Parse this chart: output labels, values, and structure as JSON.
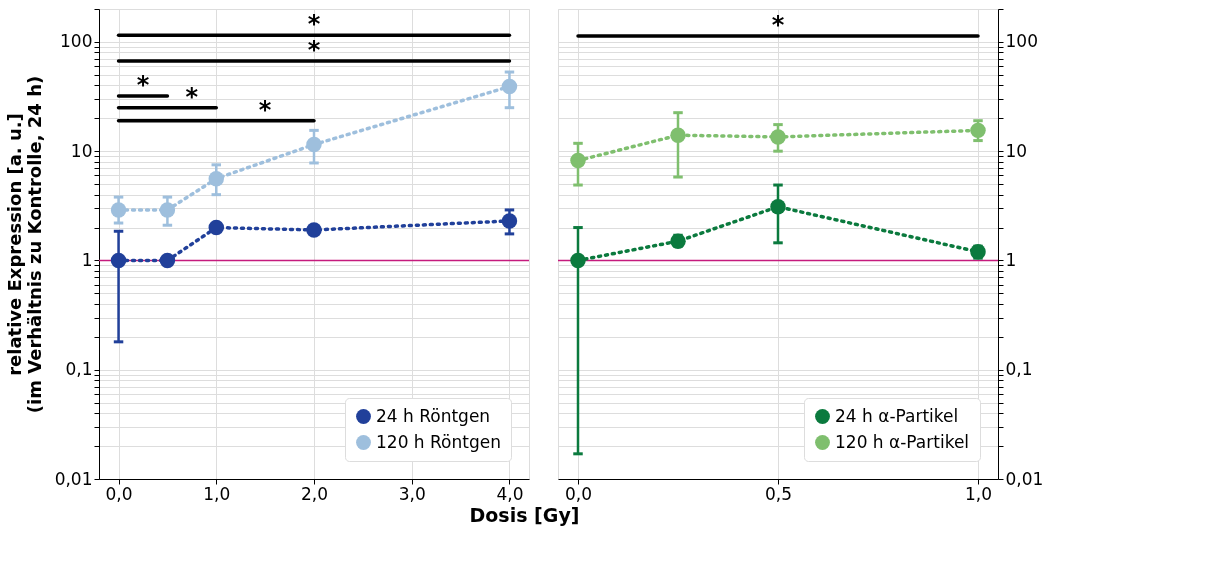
{
  "chart_data": [
    {
      "type": "line",
      "xlabel": "Dosis [Gy]",
      "ylabel": "relative Expression [a. u.]\n(im Verhältnis zu Kontrolle, 24 h)",
      "log": "y",
      "grid": true,
      "legend": "bottom right",
      "marker": "circle",
      "line_style": "dotted",
      "xlim": [
        -0.2,
        4.2
      ],
      "xticks": [
        {
          "value": 0,
          "label": "0,0"
        },
        {
          "value": 1,
          "label": "1,0"
        },
        {
          "value": 2,
          "label": "2,0"
        },
        {
          "value": 3,
          "label": "3,0"
        },
        {
          "value": 4,
          "label": "4,0"
        }
      ],
      "ylim": [
        0.01,
        200
      ],
      "yticks": [
        {
          "value": 0.01,
          "label": "0,01"
        },
        {
          "value": 0.02,
          "label": null
        },
        {
          "value": 0.03,
          "label": null
        },
        {
          "value": 0.04,
          "label": null
        },
        {
          "value": 0.05,
          "label": null
        },
        {
          "value": 0.06,
          "label": null
        },
        {
          "value": 0.07,
          "label": null
        },
        {
          "value": 0.08,
          "label": null
        },
        {
          "value": 0.09,
          "label": null
        },
        {
          "value": 0.1,
          "label": "0,1"
        },
        {
          "value": 0.2,
          "label": null
        },
        {
          "value": 0.3,
          "label": null
        },
        {
          "value": 0.4,
          "label": null
        },
        {
          "value": 0.5,
          "label": null
        },
        {
          "value": 0.6,
          "label": null
        },
        {
          "value": 0.7,
          "label": null
        },
        {
          "value": 0.8,
          "label": null
        },
        {
          "value": 0.9,
          "label": null
        },
        1,
        {
          "value": 2,
          "label": null
        },
        {
          "value": 3,
          "label": null
        },
        {
          "value": 4,
          "label": null
        },
        {
          "value": 5,
          "label": null
        },
        {
          "value": 6,
          "label": null
        },
        {
          "value": 7,
          "label": null
        },
        {
          "value": 8,
          "label": null
        },
        {
          "value": 9,
          "label": null
        },
        10,
        {
          "value": 20,
          "label": null
        },
        {
          "value": 30,
          "label": null
        },
        {
          "value": 40,
          "label": null
        },
        {
          "value": 50,
          "label": null
        },
        {
          "value": 60,
          "label": null
        },
        {
          "value": 70,
          "label": null
        },
        {
          "value": 80,
          "label": null
        },
        {
          "value": 90,
          "label": null
        },
        100,
        {
          "value": 200,
          "label": null
        }
      ],
      "ref_lines": [
        {
          "axis": "y",
          "value": 1,
          "color": "#c51b7d"
        }
      ],
      "series": [
        {
          "name": "24 h Röntgen",
          "color": "#21409a",
          "x": [
            0,
            0.5,
            1,
            2,
            4
          ],
          "values": [
            1,
            1,
            2.0,
            1.9,
            2.3
          ],
          "errors": [
            [
              0.18,
              1.85
            ],
            null,
            null,
            null,
            [
              1.75,
              2.9
            ]
          ]
        },
        {
          "name": "120 h Röntgen",
          "color": "#9ebfdd",
          "x": [
            0,
            0.5,
            1,
            2,
            4
          ],
          "values": [
            2.9,
            2.9,
            5.6,
            11.5,
            39
          ],
          "errors": [
            [
              2.2,
              3.8
            ],
            [
              2.1,
              3.8
            ],
            [
              4.0,
              7.5
            ],
            [
              7.8,
              15.5
            ],
            [
              25,
              53
            ]
          ]
        },
        {
          "type": "line",
          "color": "#000000",
          "marker": "none",
          "line_style": "solid",
          "x": [
            0,
            4
          ],
          "values": [
            115,
            115
          ]
        },
        {
          "type": "line",
          "color": "#000000",
          "marker": "none",
          "line_style": "solid",
          "x": [
            0,
            4
          ],
          "values": [
            67,
            67
          ]
        },
        {
          "type": "line",
          "color": "#000000",
          "marker": "none",
          "line_style": "solid",
          "x": [
            0,
            0.5
          ],
          "values": [
            32,
            32
          ]
        },
        {
          "type": "line",
          "color": "#000000",
          "marker": "none",
          "line_style": "solid",
          "x": [
            0,
            1
          ],
          "values": [
            25,
            25
          ]
        },
        {
          "type": "line",
          "color": "#000000",
          "marker": "none",
          "line_style": "solid",
          "x": [
            0,
            2
          ],
          "values": [
            19,
            19
          ]
        }
      ],
      "annotations": [
        {
          "text": "*",
          "x": 2,
          "y": 115
        },
        {
          "text": "*",
          "x": 2,
          "y": 67
        },
        {
          "text": "*",
          "x": 0.25,
          "y": 32
        },
        {
          "text": "*",
          "x": 0.75,
          "y": 25
        },
        {
          "text": "*",
          "x": 1.5,
          "y": 19
        }
      ]
    },
    {
      "type": "line",
      "log": "y",
      "grid": true,
      "legend": "bottom right",
      "marker": "circle",
      "line_style": "dotted",
      "xlim": [
        -0.05,
        1.05
      ],
      "xticks": [
        {
          "value": 0,
          "label": "0,0"
        },
        {
          "value": 0.5,
          "label": "0,5"
        },
        {
          "value": 1,
          "label": "1,0"
        }
      ],
      "ylim": [
        0.01,
        200
      ],
      "yticks": [
        {
          "value": 0.01,
          "label": "0,01"
        },
        {
          "value": 0.02,
          "label": null
        },
        {
          "value": 0.03,
          "label": null
        },
        {
          "value": 0.04,
          "label": null
        },
        {
          "value": 0.05,
          "label": null
        },
        {
          "value": 0.06,
          "label": null
        },
        {
          "value": 0.07,
          "label": null
        },
        {
          "value": 0.08,
          "label": null
        },
        {
          "value": 0.09,
          "label": null
        },
        {
          "value": 0.1,
          "label": "0,1"
        },
        {
          "value": 0.2,
          "label": null
        },
        {
          "value": 0.3,
          "label": null
        },
        {
          "value": 0.4,
          "label": null
        },
        {
          "value": 0.5,
          "label": null
        },
        {
          "value": 0.6,
          "label": null
        },
        {
          "value": 0.7,
          "label": null
        },
        {
          "value": 0.8,
          "label": null
        },
        {
          "value": 0.9,
          "label": null
        },
        1,
        {
          "value": 2,
          "label": null
        },
        {
          "value": 3,
          "label": null
        },
        {
          "value": 4,
          "label": null
        },
        {
          "value": 5,
          "label": null
        },
        {
          "value": 6,
          "label": null
        },
        {
          "value": 7,
          "label": null
        },
        {
          "value": 8,
          "label": null
        },
        {
          "value": 9,
          "label": null
        },
        10,
        {
          "value": 20,
          "label": null
        },
        {
          "value": 30,
          "label": null
        },
        {
          "value": 40,
          "label": null
        },
        {
          "value": 50,
          "label": null
        },
        {
          "value": 60,
          "label": null
        },
        {
          "value": 70,
          "label": null
        },
        {
          "value": 80,
          "label": null
        },
        {
          "value": 90,
          "label": null
        },
        100,
        {
          "value": 200,
          "label": null
        }
      ],
      "ref_lines": [
        {
          "axis": "y",
          "value": 1,
          "color": "#c51b7d"
        }
      ],
      "series": [
        {
          "name": "24 h α-Partikel",
          "color": "#0b7a3e",
          "x": [
            0,
            0.25,
            0.5,
            1
          ],
          "values": [
            1,
            1.5,
            3.1,
            1.2
          ],
          "errors": [
            [
              0.017,
              2.0
            ],
            [
              1.35,
              1.7
            ],
            [
              1.45,
              4.9
            ],
            [
              1.05,
              1.35
            ]
          ]
        },
        {
          "name": "120 h α-Partikel",
          "color": "#7fbf6e",
          "x": [
            0,
            0.25,
            0.5,
            1
          ],
          "values": [
            8.2,
            14,
            13.5,
            15.5
          ],
          "errors": [
            [
              4.9,
              11.8
            ],
            [
              5.8,
              22.5
            ],
            [
              10,
              17.5
            ],
            [
              12.5,
              19
            ]
          ]
        },
        {
          "type": "line",
          "color": "#000000",
          "marker": "none",
          "line_style": "solid",
          "x": [
            0,
            1
          ],
          "values": [
            113,
            113
          ]
        }
      ],
      "annotations": [
        {
          "text": "*",
          "x": 0.5,
          "y": 113
        }
      ]
    }
  ]
}
